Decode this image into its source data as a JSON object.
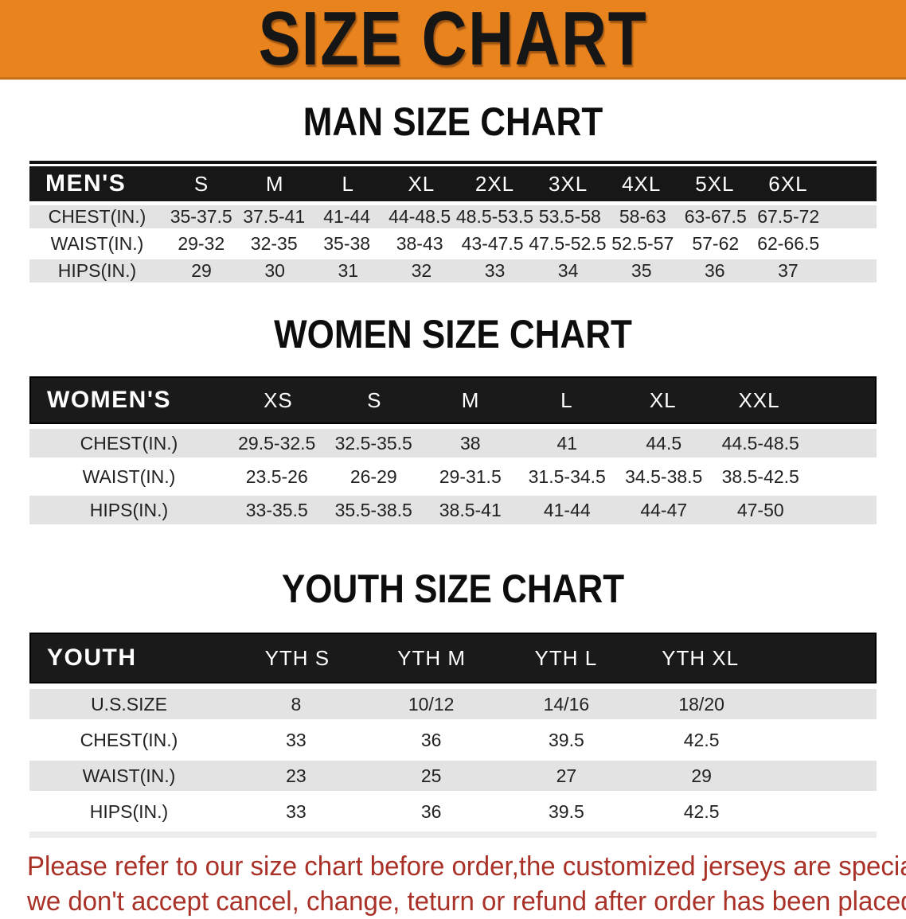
{
  "banner": {
    "title": "SIZE CHART",
    "bg_color": "#E8831E"
  },
  "sections": [
    {
      "heading": "MAN SIZE CHART",
      "table": {
        "header_label": "MEN'S",
        "sizes": [
          "S",
          "M",
          "L",
          "XL",
          "2XL",
          "3XL",
          "4XL",
          "5XL",
          "6XL"
        ],
        "rows": [
          {
            "label": "CHEST(IN.)",
            "values": [
              "35-37.5",
              "37.5-41",
              "41-44",
              "44-48.5",
              "48.5-53.5",
              "53.5-58",
              "58-63",
              "63-67.5",
              "67.5-72"
            ]
          },
          {
            "label": "WAIST(IN.)",
            "values": [
              "29-32",
              "32-35",
              "35-38",
              "38-43",
              "43-47.5",
              "47.5-52.5",
              "52.5-57",
              "57-62",
              "62-66.5"
            ]
          },
          {
            "label": "HIPS(IN.)",
            "values": [
              "29",
              "30",
              "31",
              "32",
              "33",
              "34",
              "35",
              "36",
              "37"
            ]
          }
        ]
      }
    },
    {
      "heading": "WOMEN SIZE CHART",
      "table": {
        "header_label": "WOMEN'S",
        "sizes": [
          "XS",
          "S",
          "M",
          "L",
          "XL",
          "XXL"
        ],
        "rows": [
          {
            "label": "CHEST(IN.)",
            "values": [
              "29.5-32.5",
              "32.5-35.5",
              "38",
              "41",
              "44.5",
              "44.5-48.5"
            ]
          },
          {
            "label": "WAIST(IN.)",
            "values": [
              "23.5-26",
              "26-29",
              "29-31.5",
              "31.5-34.5",
              "34.5-38.5",
              "38.5-42.5"
            ]
          },
          {
            "label": "HIPS(IN.)",
            "values": [
              "33-35.5",
              "35.5-38.5",
              "38.5-41",
              "41-44",
              "44-47",
              "47-50"
            ]
          }
        ]
      }
    },
    {
      "heading": "YOUTH SIZE CHART",
      "table": {
        "header_label": "YOUTH",
        "sizes": [
          "YTH S",
          "YTH M",
          "YTH L",
          "YTH XL"
        ],
        "rows": [
          {
            "label": "U.S.SIZE",
            "values": [
              "8",
              "10/12",
              "14/16",
              "18/20"
            ]
          },
          {
            "label": "CHEST(IN.)",
            "values": [
              "33",
              "36",
              "39.5",
              "42.5"
            ]
          },
          {
            "label": "WAIST(IN.)",
            "values": [
              "23",
              "25",
              "27",
              "29"
            ]
          },
          {
            "label": "HIPS(IN.)",
            "values": [
              "33",
              "36",
              "39.5",
              "42.5"
            ]
          }
        ]
      }
    }
  ],
  "footer": {
    "line1": "Please refer to our size chart before order,the customized jerseys are special products,",
    "line2": "we don't accept cancel, change, teturn or refund after order has been placed!",
    "text_color": "#A93128"
  }
}
